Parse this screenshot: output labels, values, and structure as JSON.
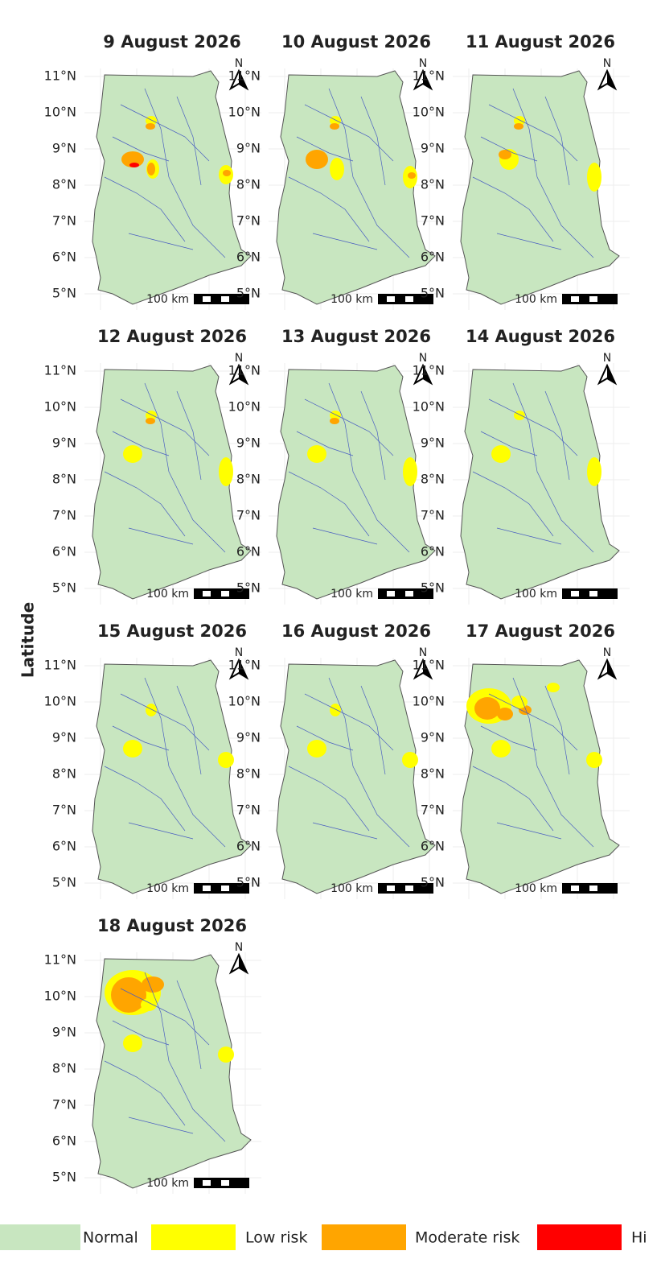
{
  "y_label": "Latitude",
  "lat_ticks": [
    "11°N",
    "10°N",
    "9°N",
    "8°N",
    "7°N",
    "6°N",
    "5°N"
  ],
  "north": "N",
  "scale": "100 km",
  "panels": [
    {
      "title": "9 August 2026"
    },
    {
      "title": "10 August 2026"
    },
    {
      "title": "11 August 2026"
    },
    {
      "title": "12 August 2026"
    },
    {
      "title": "13 August 2026"
    },
    {
      "title": "14 August 2026"
    },
    {
      "title": "15 August 2026"
    },
    {
      "title": "16 August 2026"
    },
    {
      "title": "17 August 2026"
    },
    {
      "title": "18 August 2026"
    }
  ],
  "legend": [
    {
      "name": "Normal",
      "color": "#c8e6c0"
    },
    {
      "name": "Low risk",
      "color": "#ffff00"
    },
    {
      "name": "Moderate risk",
      "color": "#ffa500"
    },
    {
      "name": "Hi",
      "color": "#ff0000"
    }
  ]
}
